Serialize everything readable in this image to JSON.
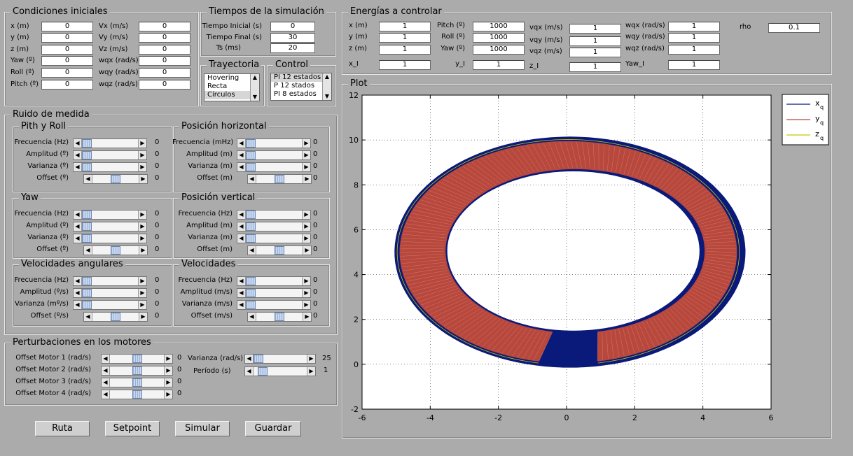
{
  "condiciones_iniciales": {
    "title": "Condiciones iniciales",
    "rows": [
      {
        "l1": "x (m)",
        "v1": "0",
        "l2": "Vx (m/s)",
        "v2": "0"
      },
      {
        "l1": "y (m)",
        "v1": "0",
        "l2": "Vy (m/s)",
        "v2": "0"
      },
      {
        "l1": "z (m)",
        "v1": "0",
        "l2": "Vz (m/s)",
        "v2": "0"
      },
      {
        "l1": "Yaw (º)",
        "v1": "0",
        "l2": "wqx (rad/s)",
        "v2": "0"
      },
      {
        "l1": "Roll (º)",
        "v1": "0",
        "l2": "wqy (rad/s)",
        "v2": "0"
      },
      {
        "l1": "Pitch (º)",
        "v1": "0",
        "l2": "wqz (rad/s)",
        "v2": "0"
      }
    ]
  },
  "tiempos": {
    "title": "Tiempos de la simulación",
    "rows": [
      {
        "label": "Tiempo Inicial (s)",
        "value": "0"
      },
      {
        "label": "Tiempo Final (s)",
        "value": "30"
      },
      {
        "label": "Ts (ms)",
        "value": "20"
      }
    ]
  },
  "trayectoria": {
    "title": "Trayectoria",
    "items": [
      "Hovering",
      "Recta",
      "Círculos"
    ],
    "selected_index": 2
  },
  "control": {
    "title": "Control",
    "items": [
      "PI 12 estados",
      "P 12 stados",
      "PI 8 estados"
    ],
    "selected_index": 0
  },
  "energias": {
    "title": "Energías a controlar",
    "col1": [
      {
        "label": "x (m)",
        "value": "1"
      },
      {
        "label": "y (m)",
        "value": "1"
      },
      {
        "label": "z (m)",
        "value": "1"
      },
      {
        "label": "x_I",
        "value": "1"
      }
    ],
    "col2": [
      {
        "label": "Pitch (º)",
        "value": "1000"
      },
      {
        "label": "Roll (º)",
        "value": "1000"
      },
      {
        "label": "Yaw (º)",
        "value": "1000"
      },
      {
        "label": "y_I",
        "value": "1"
      }
    ],
    "col3": [
      {
        "label": "vqx (m/s)",
        "value": "1"
      },
      {
        "label": "vqy (m/s)",
        "value": "1"
      },
      {
        "label": "vqz (m/s)",
        "value": "1"
      },
      {
        "label": "z_I",
        "value": "1"
      }
    ],
    "col4": [
      {
        "label": "wqx (rad/s)",
        "value": "1"
      },
      {
        "label": "wqy (rad/s)",
        "value": "1"
      },
      {
        "label": "wqz (rad/s)",
        "value": "1"
      },
      {
        "label": "Yaw_I",
        "value": "1"
      }
    ],
    "rho_label": "rho",
    "rho_value": "0.1"
  },
  "ruido": {
    "title": "Ruido de medida",
    "groups": [
      {
        "title": "Pith y Roll",
        "labels": [
          "Frecuencia (Hz)",
          "Amplitud (º)",
          "Varianza (º)",
          "Offset (º)"
        ],
        "values": [
          "0",
          "0",
          "0",
          "0"
        ],
        "levels": [
          0,
          0,
          0,
          0.5
        ]
      },
      {
        "title": "Posición horizontal",
        "labels": [
          "Frecuencia (mHz)",
          "Amplitud (m)",
          "Varianza (m)",
          "Offset (m)"
        ],
        "values": [
          "0",
          "0",
          "0",
          "0"
        ],
        "levels": [
          0,
          0,
          0,
          0.5
        ]
      },
      {
        "title": "Yaw",
        "labels": [
          "Frecuencia (Hz)",
          "Amplitud (º)",
          "Varianza (º)",
          "Offset (º)"
        ],
        "values": [
          "0",
          "0",
          "0",
          "0"
        ],
        "levels": [
          0,
          0,
          0,
          0.5
        ]
      },
      {
        "title": "Posición vertical",
        "labels": [
          "Frecuencia (Hz)",
          "Amplitud (m)",
          "Varianza (m)",
          "Offset (m)"
        ],
        "values": [
          "0",
          "0",
          "0",
          "0"
        ],
        "levels": [
          0,
          0,
          0,
          0.5
        ]
      },
      {
        "title": "Velocidades angulares",
        "labels": [
          "Frecuencia (Hz)",
          "Amplitud (º/s)",
          "Varianza (mº/s)",
          "Offset (º/s)"
        ],
        "values": [
          "0",
          "0",
          "0",
          "0"
        ],
        "levels": [
          0,
          0,
          0,
          0.5
        ]
      },
      {
        "title": "Velocidades",
        "labels": [
          "Frecuencia (Hz)",
          "Amplitud (m/s)",
          "Varianza (m/s)",
          "Offset   (m/s)"
        ],
        "values": [
          "0",
          "0",
          "0",
          "0"
        ],
        "levels": [
          0,
          0,
          0,
          0.5
        ]
      }
    ]
  },
  "perturbaciones": {
    "title": "Perturbaciones en los motores",
    "motors": [
      {
        "label": "Offset Motor 1 (rad/s)",
        "value": "0",
        "level": 0.5
      },
      {
        "label": "Offset Motor 2 (rad/s)",
        "value": "0",
        "level": 0.5
      },
      {
        "label": "Offset Motor 3 (rad/s)",
        "value": "0",
        "level": 0.5
      },
      {
        "label": "Offset Motor 4 (rad/s)",
        "value": "0",
        "level": 0.5
      }
    ],
    "varianza": {
      "label": "Varianza (rad/s)",
      "value": "25",
      "level": 0.0
    },
    "periodo": {
      "label": "Período (s)",
      "value": "1",
      "level": 0.1
    }
  },
  "buttons": {
    "ruta": "Ruta",
    "setpoint": "Setpoint",
    "simular": "Simular",
    "guardar": "Guardar"
  },
  "plot": {
    "title": "Plot"
  },
  "chart_data": {
    "type": "line",
    "xlim": [
      -6,
      6
    ],
    "ylim": [
      -2,
      12
    ],
    "xticks": [
      "-6",
      "-4",
      "-2",
      "0",
      "2",
      "4",
      "6"
    ],
    "yticks": [
      "-2",
      "0",
      "2",
      "4",
      "6",
      "8",
      "10",
      "12"
    ],
    "grid": true,
    "legend_position": "top-right",
    "series": [
      {
        "name": "x",
        "sub": "q",
        "color": "#0a1a7a"
      },
      {
        "name": "y",
        "sub": "q",
        "color": "#b8473c"
      },
      {
        "name": "z",
        "sub": "q",
        "color": "#c8c800"
      }
    ],
    "trajectory": {
      "center": [
        0,
        5
      ],
      "radius_x": 5,
      "radius_y": 5,
      "gap_start_deg": -100,
      "gap_end_deg": -80
    },
    "band_width": 1.2
  },
  "colors": {
    "panel_bg": "#ababab",
    "plot_bg": "#ffffff",
    "outer_ring": "#0a1a7a",
    "band": "#b8473c"
  }
}
